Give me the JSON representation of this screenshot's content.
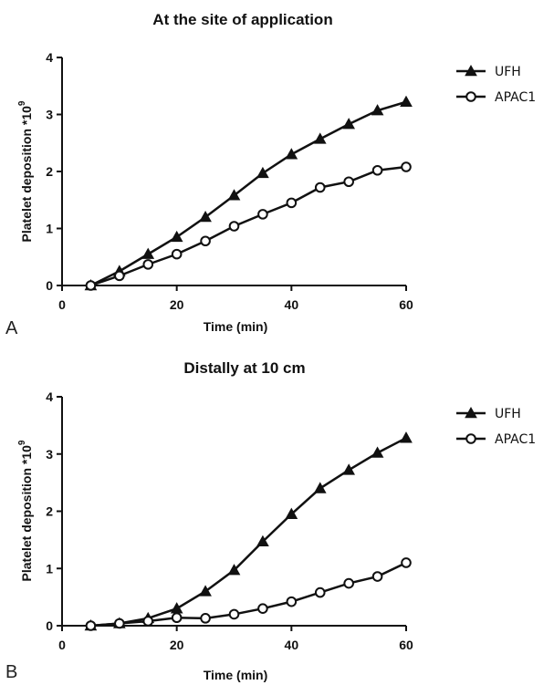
{
  "chart_data": [
    {
      "type": "line",
      "panel_letter": "A",
      "title": "At the site of application",
      "xlabel": "Time (min)",
      "ylabel_main": "Platelet deposition *10",
      "ylabel_sup": "9",
      "xlim": [
        0,
        60
      ],
      "ylim": [
        0,
        4
      ],
      "xticks": [
        0,
        20,
        40,
        60
      ],
      "yticks": [
        0,
        1,
        2,
        3,
        4
      ],
      "x": [
        5,
        10,
        15,
        20,
        25,
        30,
        35,
        40,
        45,
        50,
        55,
        60
      ],
      "series": [
        {
          "name": "UFH",
          "marker": "triangle-filled",
          "values": [
            0.0,
            0.25,
            0.55,
            0.85,
            1.2,
            1.58,
            1.97,
            2.3,
            2.57,
            2.83,
            3.07,
            3.22
          ]
        },
        {
          "name": "APAC1",
          "marker": "circle-open",
          "values": [
            0.0,
            0.17,
            0.37,
            0.55,
            0.78,
            1.04,
            1.25,
            1.45,
            1.72,
            1.82,
            2.02,
            2.08
          ]
        }
      ],
      "legend_position": "right"
    },
    {
      "type": "line",
      "panel_letter": "B",
      "title": "Distally at 10 cm",
      "xlabel": "Time (min)",
      "ylabel_main": "Platelet deposition *10",
      "ylabel_sup": "9",
      "xlim": [
        0,
        60
      ],
      "ylim": [
        0,
        4
      ],
      "xticks": [
        0,
        20,
        40,
        60
      ],
      "yticks": [
        0,
        1,
        2,
        3,
        4
      ],
      "x": [
        5,
        10,
        15,
        20,
        25,
        30,
        35,
        40,
        45,
        50,
        55,
        60
      ],
      "series": [
        {
          "name": "UFH",
          "marker": "triangle-filled",
          "values": [
            0.0,
            0.04,
            0.13,
            0.3,
            0.6,
            0.97,
            1.47,
            1.95,
            2.4,
            2.72,
            3.02,
            3.28
          ]
        },
        {
          "name": "APAC1",
          "marker": "circle-open",
          "values": [
            0.0,
            0.04,
            0.08,
            0.14,
            0.13,
            0.2,
            0.3,
            0.42,
            0.58,
            0.74,
            0.86,
            1.1
          ]
        }
      ],
      "legend_position": "right"
    }
  ]
}
